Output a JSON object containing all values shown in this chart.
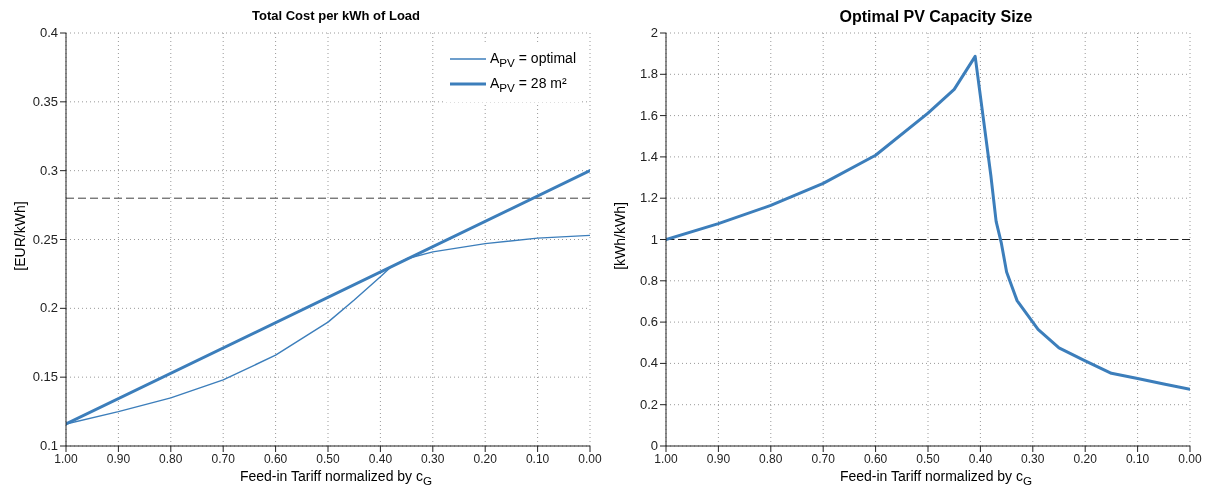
{
  "chart_data": [
    {
      "type": "line",
      "title": "Total Cost per kWh of Load",
      "xlabel": "Feed-in Tariff normalized by c$_{G}$",
      "ylabel": "[EUR/kWh]",
      "xlim": [
        1,
        0
      ],
      "xticks": [
        {
          "value": 1,
          "label": "1.00"
        },
        {
          "value": 0.9,
          "label": "0.90"
        },
        {
          "value": 0.8,
          "label": "0.80"
        },
        {
          "value": 0.7,
          "label": "0.70"
        },
        {
          "value": 0.6,
          "label": "0.60"
        },
        {
          "value": 0.5,
          "label": "0.50"
        },
        {
          "value": 0.4,
          "label": "0.40"
        },
        {
          "value": 0.3,
          "label": "0.30"
        },
        {
          "value": 0.2,
          "label": "0.20"
        },
        {
          "value": 0.1,
          "label": "0.10"
        },
        {
          "value": 0,
          "label": "0.00"
        }
      ],
      "ylim": [
        0.1,
        0.4
      ],
      "yticks": [
        0.1,
        0.15,
        0.2,
        0.25,
        0.3,
        0.35,
        0.4
      ],
      "grid": true,
      "legend": "top right",
      "series": [
        {
          "name": "A$_{PV}$ = optimal",
          "color": "#3c7ebb",
          "x": [
            1,
            0.9,
            0.8,
            0.7,
            0.6,
            0.5,
            0.45,
            0.4,
            0.38,
            0.35,
            0.3,
            0.2,
            0.1,
            0
          ],
          "values": [
            0.116,
            0.125,
            0.135,
            0.148,
            0.166,
            0.19,
            0.206,
            0.223,
            0.23,
            0.236,
            0.241,
            0.247,
            0.251,
            0.253
          ]
        },
        {
          "name": "A$_{PV}$ = 28 m²",
          "color": "#3c7ebb",
          "x": [
            1,
            0
          ],
          "values": [
            0.116,
            0.3
          ]
        }
      ],
      "ref_lines": [
        {
          "axis": "y",
          "value": 0.28,
          "color": "#404040",
          "line_style": "dashed"
        }
      ]
    },
    {
      "type": "line",
      "title": "Optimal PV Capacity Size",
      "xlabel": "Feed-in Tariff normalized by c$_{G}$",
      "ylabel": "[kWh/kWh]",
      "xlim": [
        1,
        0
      ],
      "xticks": [
        {
          "value": 1,
          "label": "1.00"
        },
        {
          "value": 0.9,
          "label": "0.90"
        },
        {
          "value": 0.8,
          "label": "0.80"
        },
        {
          "value": 0.7,
          "label": "0.70"
        },
        {
          "value": 0.6,
          "label": "0.60"
        },
        {
          "value": 0.5,
          "label": "0.50"
        },
        {
          "value": 0.4,
          "label": "0.40"
        },
        {
          "value": 0.3,
          "label": "0.30"
        },
        {
          "value": 0.2,
          "label": "0.20"
        },
        {
          "value": 0.1,
          "label": "0.10"
        },
        {
          "value": 0,
          "label": "0.00"
        }
      ],
      "ylim": [
        0,
        2
      ],
      "yticks": [
        0,
        0.2,
        0.4,
        0.6,
        0.8,
        1,
        1.2,
        1.4,
        1.6,
        1.8,
        2
      ],
      "grid": true,
      "series": [
        {
          "color": "#3c7ebb",
          "x": [
            1,
            0.9,
            0.8,
            0.7,
            0.6,
            0.5,
            0.45,
            0.41,
            0.38,
            0.37,
            0.36,
            0.35,
            0.33,
            0.29,
            0.25,
            0.2,
            0.15,
            0.1,
            0.05,
            0
          ],
          "values": [
            1,
            1.077,
            1.165,
            1.272,
            1.408,
            1.612,
            1.727,
            1.887,
            1.309,
            1.088,
            0.982,
            0.843,
            0.704,
            0.565,
            0.475,
            0.412,
            0.352,
            0.327,
            0.3,
            0.275
          ]
        }
      ],
      "ref_lines": [
        {
          "axis": "y",
          "value": 1,
          "color": "#202020",
          "line_style": "dashed"
        }
      ]
    }
  ]
}
